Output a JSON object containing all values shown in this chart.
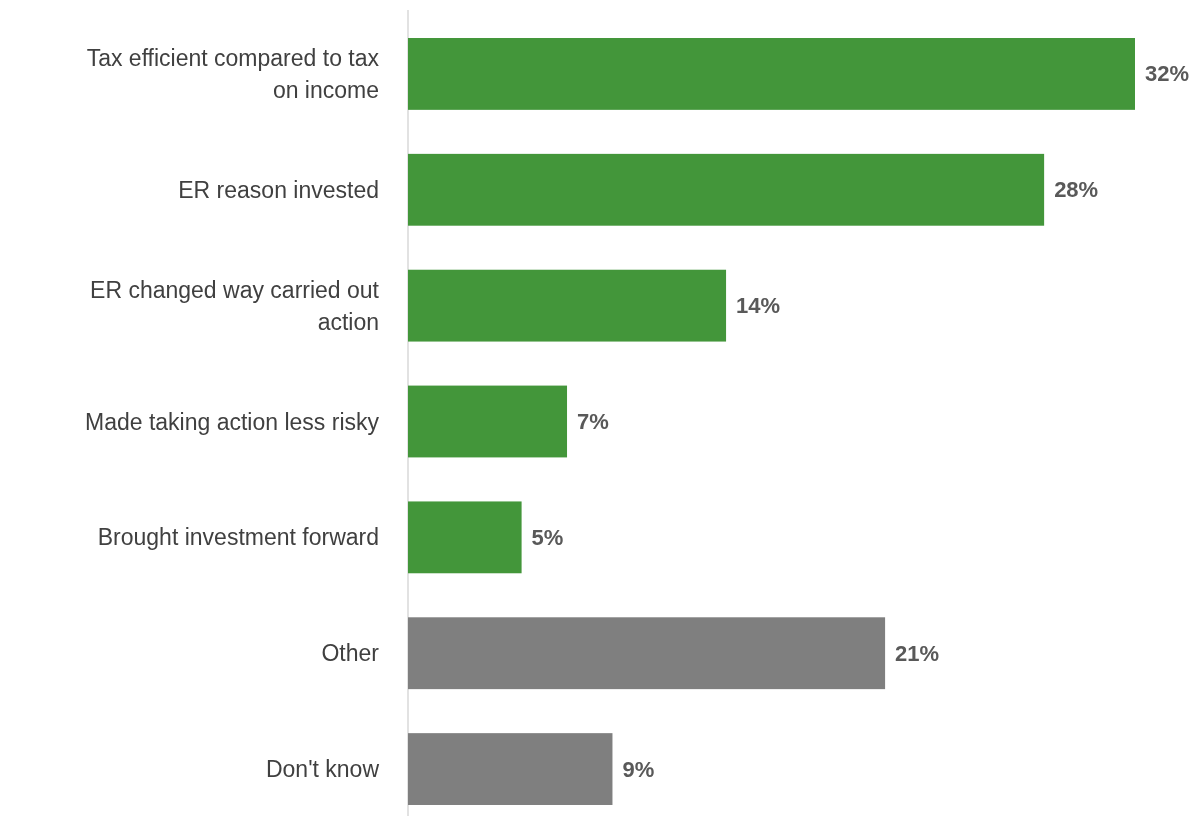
{
  "chart_data": {
    "type": "bar",
    "orientation": "horizontal",
    "categories": [
      "Tax efficient compared to tax on income",
      "ER reason invested",
      "ER changed way carried out action",
      "Made taking action less risky",
      "Brought investment forward",
      "Other",
      "Don't know"
    ],
    "values": [
      32,
      28,
      14,
      7,
      5,
      21,
      9
    ],
    "colors": [
      "#43963a",
      "#43963a",
      "#43963a",
      "#43963a",
      "#43963a",
      "#7f7f7f",
      "#7f7f7f"
    ],
    "value_labels": [
      "32%",
      "28%",
      "14%",
      "7%",
      "5%",
      "21%",
      "9%"
    ]
  }
}
